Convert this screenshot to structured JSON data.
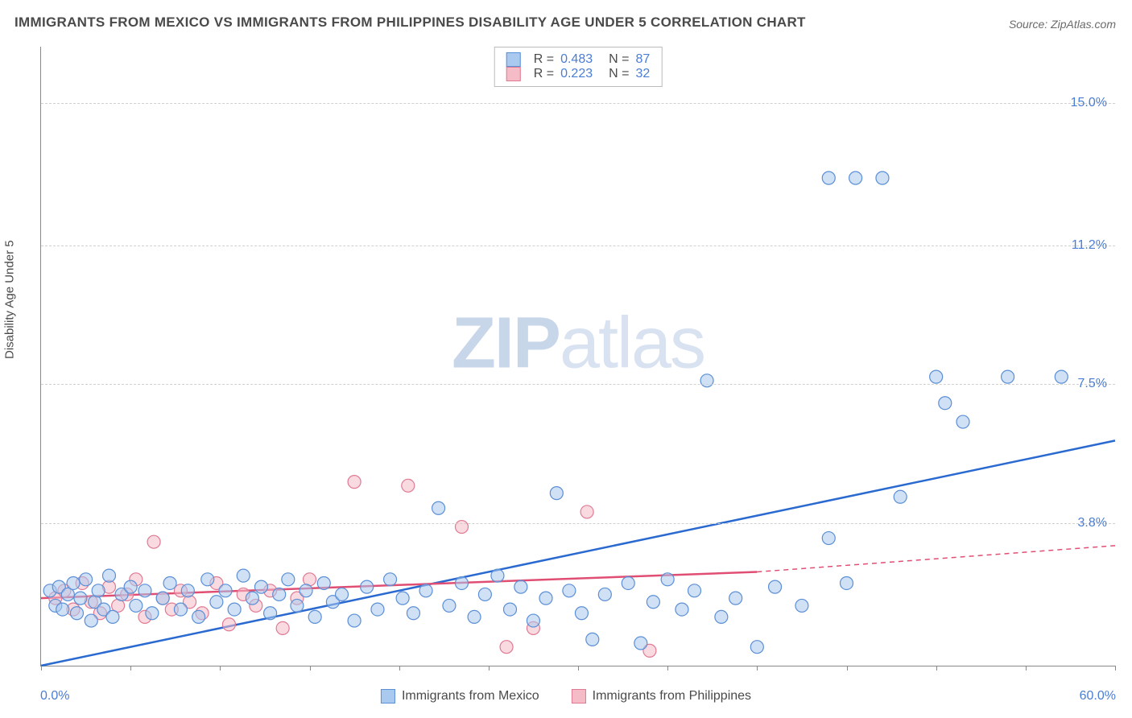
{
  "title": "IMMIGRANTS FROM MEXICO VS IMMIGRANTS FROM PHILIPPINES DISABILITY AGE UNDER 5 CORRELATION CHART",
  "source": "Source: ZipAtlas.com",
  "watermark": {
    "bold": "ZIP",
    "light": "atlas"
  },
  "y_axis_label": "Disability Age Under 5",
  "chart": {
    "type": "scatter",
    "xlim": [
      0,
      60
    ],
    "ylim": [
      0,
      16.5
    ],
    "x_tick_step": 5,
    "x_min_label": "0.0%",
    "x_max_label": "60.0%",
    "y_ticks": [
      {
        "value": 3.8,
        "label": "3.8%"
      },
      {
        "value": 7.5,
        "label": "7.5%"
      },
      {
        "value": 11.2,
        "label": "11.2%"
      },
      {
        "value": 15.0,
        "label": "15.0%"
      }
    ],
    "background_color": "#ffffff",
    "grid_color": "#d0d0d0",
    "marker_radius": 8,
    "marker_stroke_width": 1.2,
    "trend_line_width": 2.5
  },
  "series": {
    "mexico": {
      "label": "Immigrants from Mexico",
      "fill": "#a9c9ef",
      "stroke": "#5b8fd6",
      "fill_opacity": 0.55,
      "trend_color": "#2a6ad0",
      "R": "0.483",
      "N": "87",
      "trend": {
        "x1": 0,
        "y1": 0.0,
        "x2": 60,
        "y2": 6.0
      },
      "points": [
        [
          0.5,
          2.0
        ],
        [
          0.8,
          1.6
        ],
        [
          1.0,
          2.1
        ],
        [
          1.2,
          1.5
        ],
        [
          1.5,
          1.9
        ],
        [
          1.8,
          2.2
        ],
        [
          2.0,
          1.4
        ],
        [
          2.2,
          1.8
        ],
        [
          2.5,
          2.3
        ],
        [
          2.8,
          1.2
        ],
        [
          3.0,
          1.7
        ],
        [
          3.2,
          2.0
        ],
        [
          3.5,
          1.5
        ],
        [
          3.8,
          2.4
        ],
        [
          4.0,
          1.3
        ],
        [
          4.5,
          1.9
        ],
        [
          5.0,
          2.1
        ],
        [
          5.3,
          1.6
        ],
        [
          5.8,
          2.0
        ],
        [
          6.2,
          1.4
        ],
        [
          6.8,
          1.8
        ],
        [
          7.2,
          2.2
        ],
        [
          7.8,
          1.5
        ],
        [
          8.2,
          2.0
        ],
        [
          8.8,
          1.3
        ],
        [
          9.3,
          2.3
        ],
        [
          9.8,
          1.7
        ],
        [
          10.3,
          2.0
        ],
        [
          10.8,
          1.5
        ],
        [
          11.3,
          2.4
        ],
        [
          11.8,
          1.8
        ],
        [
          12.3,
          2.1
        ],
        [
          12.8,
          1.4
        ],
        [
          13.3,
          1.9
        ],
        [
          13.8,
          2.3
        ],
        [
          14.3,
          1.6
        ],
        [
          14.8,
          2.0
        ],
        [
          15.3,
          1.3
        ],
        [
          15.8,
          2.2
        ],
        [
          16.3,
          1.7
        ],
        [
          16.8,
          1.9
        ],
        [
          17.5,
          1.2
        ],
        [
          18.2,
          2.1
        ],
        [
          18.8,
          1.5
        ],
        [
          19.5,
          2.3
        ],
        [
          20.2,
          1.8
        ],
        [
          20.8,
          1.4
        ],
        [
          21.5,
          2.0
        ],
        [
          22.2,
          4.2
        ],
        [
          22.8,
          1.6
        ],
        [
          23.5,
          2.2
        ],
        [
          24.2,
          1.3
        ],
        [
          24.8,
          1.9
        ],
        [
          25.5,
          2.4
        ],
        [
          26.2,
          1.5
        ],
        [
          26.8,
          2.1
        ],
        [
          27.5,
          1.2
        ],
        [
          28.2,
          1.8
        ],
        [
          28.8,
          4.6
        ],
        [
          29.5,
          2.0
        ],
        [
          30.2,
          1.4
        ],
        [
          30.8,
          0.7
        ],
        [
          31.5,
          1.9
        ],
        [
          32.8,
          2.2
        ],
        [
          33.5,
          0.6
        ],
        [
          34.2,
          1.7
        ],
        [
          35.0,
          2.3
        ],
        [
          35.8,
          1.5
        ],
        [
          36.5,
          2.0
        ],
        [
          37.2,
          7.6
        ],
        [
          38.0,
          1.3
        ],
        [
          38.8,
          1.8
        ],
        [
          40.0,
          0.5
        ],
        [
          41.0,
          2.1
        ],
        [
          42.5,
          1.6
        ],
        [
          44.0,
          3.4
        ],
        [
          44.0,
          13.0
        ],
        [
          45.0,
          2.2
        ],
        [
          45.5,
          13.0
        ],
        [
          47.0,
          13.0
        ],
        [
          48.0,
          4.5
        ],
        [
          50.0,
          7.7
        ],
        [
          50.5,
          7.0
        ],
        [
          51.5,
          6.5
        ],
        [
          54.0,
          7.7
        ],
        [
          57.0,
          7.7
        ]
      ]
    },
    "philippines": {
      "label": "Immigrants from Philippines",
      "fill": "#f5bcc8",
      "stroke": "#e07a93",
      "fill_opacity": 0.55,
      "trend_color": "#e04f73",
      "R": "0.223",
      "N": "32",
      "trend_solid": {
        "x1": 0,
        "y1": 1.8,
        "x2": 40,
        "y2": 2.5
      },
      "trend_dashed": {
        "x1": 40,
        "y1": 2.5,
        "x2": 60,
        "y2": 3.2
      },
      "points": [
        [
          0.8,
          1.8
        ],
        [
          1.3,
          2.0
        ],
        [
          1.8,
          1.5
        ],
        [
          2.3,
          2.2
        ],
        [
          2.8,
          1.7
        ],
        [
          3.3,
          1.4
        ],
        [
          3.8,
          2.1
        ],
        [
          4.3,
          1.6
        ],
        [
          4.8,
          1.9
        ],
        [
          5.3,
          2.3
        ],
        [
          5.8,
          1.3
        ],
        [
          6.3,
          3.3
        ],
        [
          6.8,
          1.8
        ],
        [
          7.3,
          1.5
        ],
        [
          7.8,
          2.0
        ],
        [
          8.3,
          1.7
        ],
        [
          9.0,
          1.4
        ],
        [
          9.8,
          2.2
        ],
        [
          10.5,
          1.1
        ],
        [
          11.3,
          1.9
        ],
        [
          12.0,
          1.6
        ],
        [
          12.8,
          2.0
        ],
        [
          13.5,
          1.0
        ],
        [
          14.3,
          1.8
        ],
        [
          15.0,
          2.3
        ],
        [
          17.5,
          4.9
        ],
        [
          20.5,
          4.8
        ],
        [
          23.5,
          3.7
        ],
        [
          26.0,
          0.5
        ],
        [
          27.5,
          1.0
        ],
        [
          30.5,
          4.1
        ],
        [
          34.0,
          0.4
        ]
      ]
    }
  }
}
